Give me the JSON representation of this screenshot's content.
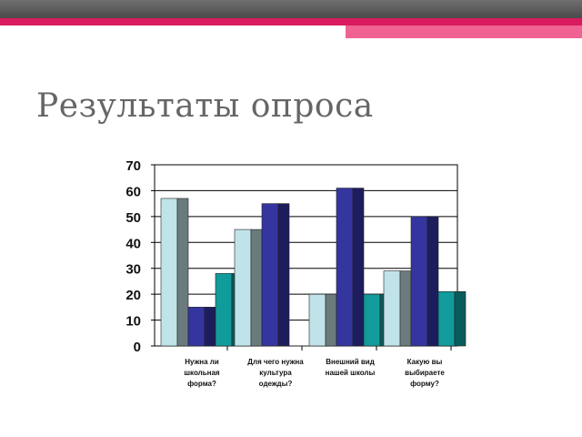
{
  "slide": {
    "title": "Результаты опроса"
  },
  "chart_data": {
    "type": "bar",
    "title": "",
    "xlabel": "",
    "ylabel": "",
    "ylim": [
      0,
      70
    ],
    "yticks": [
      0,
      10,
      20,
      30,
      40,
      50,
      60,
      70
    ],
    "grid": true,
    "legend": "none",
    "categories": [
      [
        "Нужна ли",
        "школьная",
        "форма?"
      ],
      [
        "Для чего нужна",
        "культура",
        "одежды?"
      ],
      [
        "Внешний вид",
        "нашей школы"
      ],
      [
        "Какую вы",
        "выбираете",
        "форму?"
      ]
    ],
    "series": [
      {
        "values": [
          57,
          45,
          20,
          29
        ],
        "color": "#bfe3e8",
        "side": "#6b7b7d"
      },
      {
        "values": [
          15,
          55,
          61,
          50
        ],
        "color": "#3535a0",
        "side": "#1d1d5e"
      },
      {
        "values": [
          28,
          0,
          20,
          21
        ],
        "color": "#129b9b",
        "side": "#0a5c5c"
      }
    ]
  }
}
